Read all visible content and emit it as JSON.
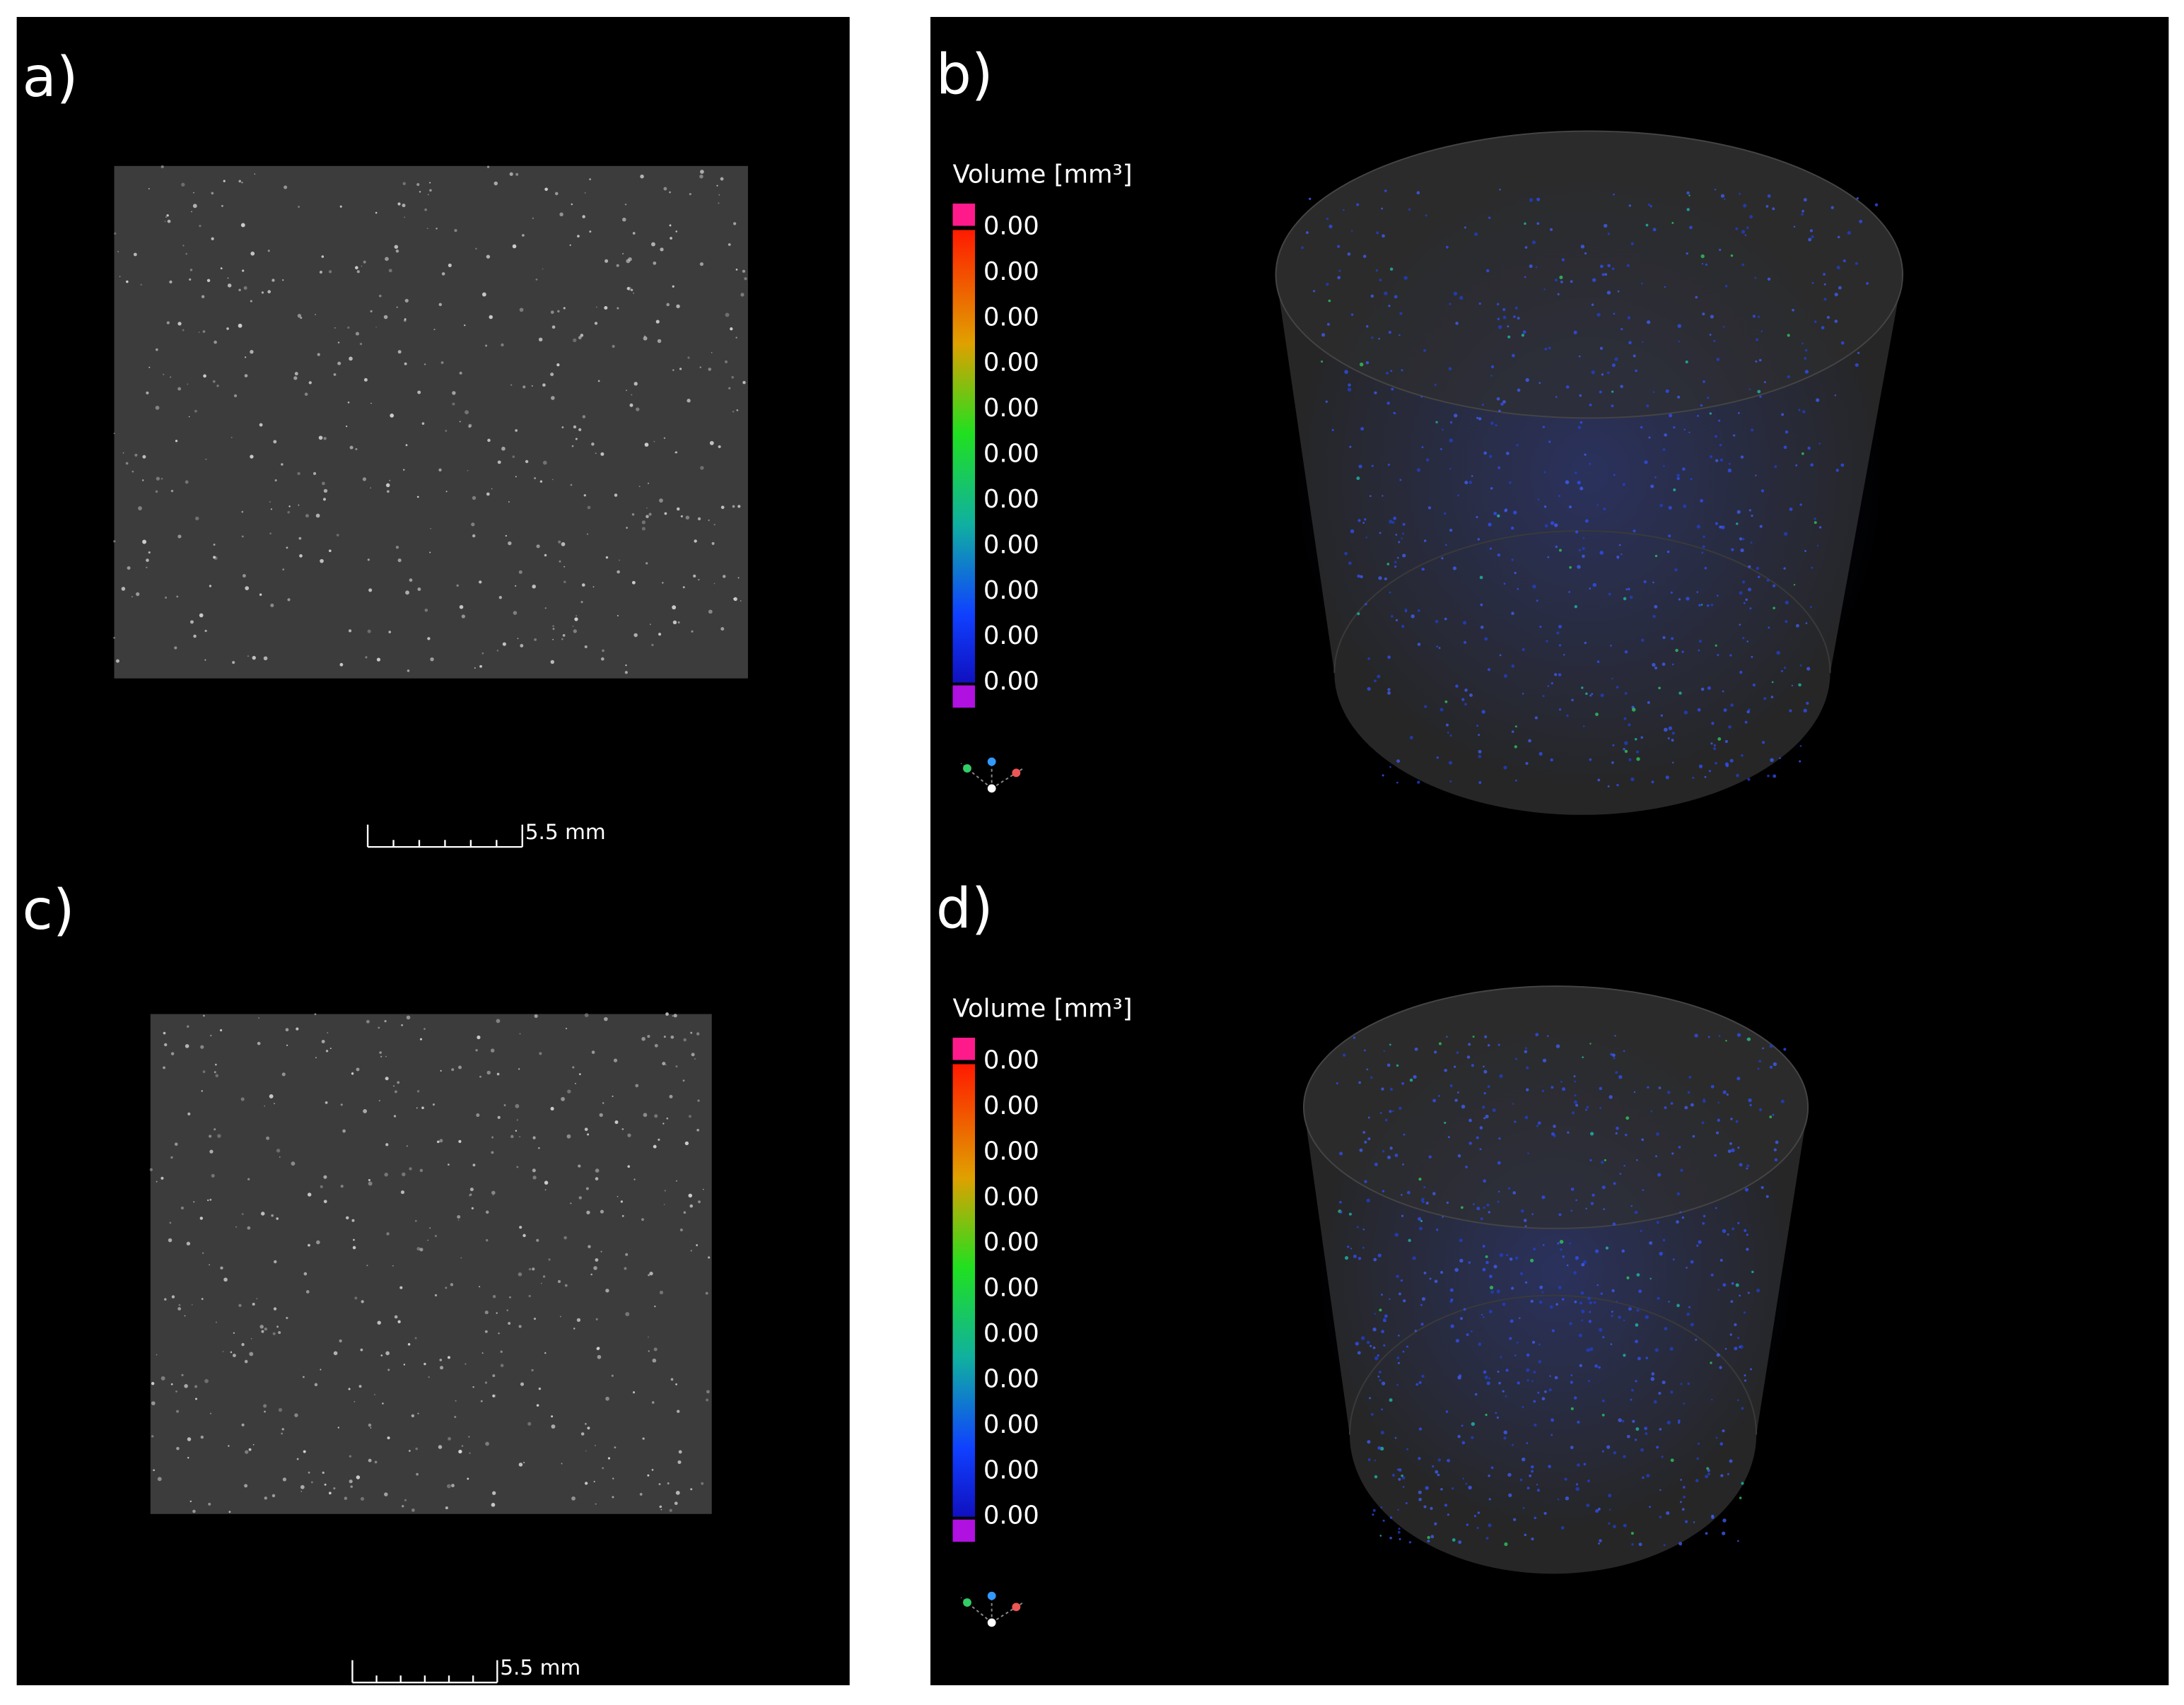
{
  "panels": [
    {
      "label": "a)",
      "scale_bar": "5.5 mm"
    },
    {
      "label": "b)",
      "legend_title": "Volume [mm³]",
      "legend_ticks": [
        "0.00",
        "0.00",
        "0.00",
        "0.00",
        "0.00",
        "0.00",
        "0.00",
        "0.00",
        "0.00",
        "0.00",
        "0.00"
      ]
    },
    {
      "label": "c)",
      "scale_bar": "5.5 mm"
    },
    {
      "label": "d)",
      "legend_title": "Volume [mm³]",
      "legend_ticks": [
        "0.00",
        "0.00",
        "0.00",
        "0.00",
        "0.00",
        "0.00",
        "0.00",
        "0.00",
        "0.00",
        "0.00",
        "0.00"
      ]
    }
  ]
}
